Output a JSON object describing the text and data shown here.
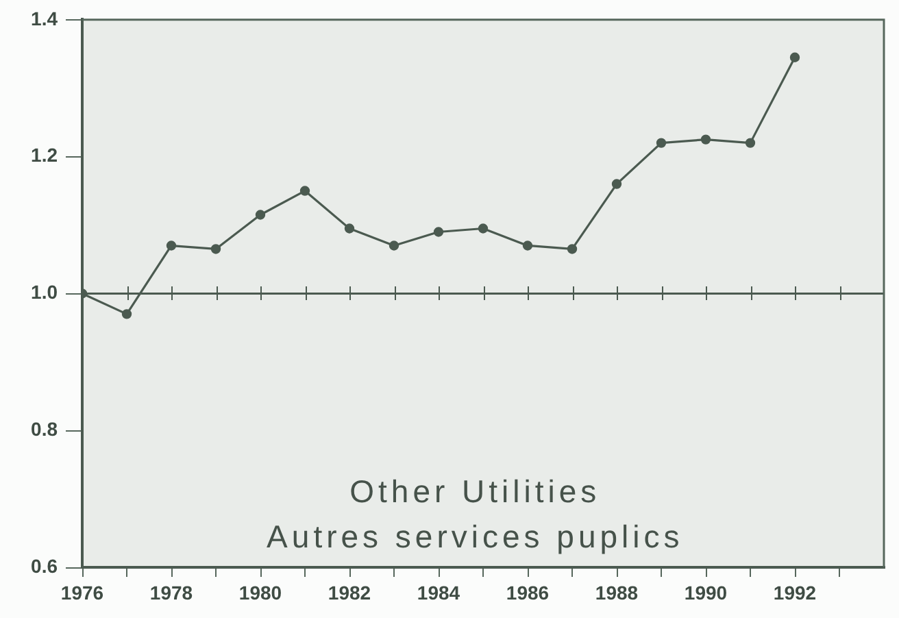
{
  "chart_data": {
    "type": "line",
    "title": "Other Utilities",
    "subtitle": "Autres services puplics",
    "x": [
      1976,
      1977,
      1978,
      1979,
      1980,
      1981,
      1982,
      1983,
      1984,
      1985,
      1986,
      1987,
      1988,
      1989,
      1990,
      1991,
      1992
    ],
    "values": [
      1.0,
      0.97,
      1.07,
      1.065,
      1.115,
      1.15,
      1.095,
      1.07,
      1.09,
      1.095,
      1.07,
      1.065,
      1.16,
      1.22,
      1.225,
      1.22,
      1.345
    ],
    "color": "#4b5a50",
    "xlim": [
      1976,
      1994
    ],
    "xticks": [
      1976,
      {
        "value": 1977,
        "label": null
      },
      1978,
      {
        "value": 1979,
        "label": null
      },
      1980,
      {
        "value": 1981,
        "label": null
      },
      1982,
      {
        "value": 1983,
        "label": null
      },
      1984,
      {
        "value": 1985,
        "label": null
      },
      1986,
      {
        "value": 1987,
        "label": null
      },
      1988,
      {
        "value": 1989,
        "label": null
      },
      1990,
      {
        "value": 1991,
        "label": null
      },
      1992,
      {
        "value": 1993,
        "label": null
      }
    ],
    "ylim": [
      0.6,
      1.4
    ],
    "yticks": [
      0.6,
      0.8,
      {
        "value": 1,
        "label": "1.0"
      },
      1.2,
      1.4
    ],
    "ref_lines": [
      {
        "axis": "y",
        "value": 1,
        "color": "#4b5a50"
      }
    ],
    "marker": "circle",
    "line_style": "solid",
    "legend": false
  }
}
